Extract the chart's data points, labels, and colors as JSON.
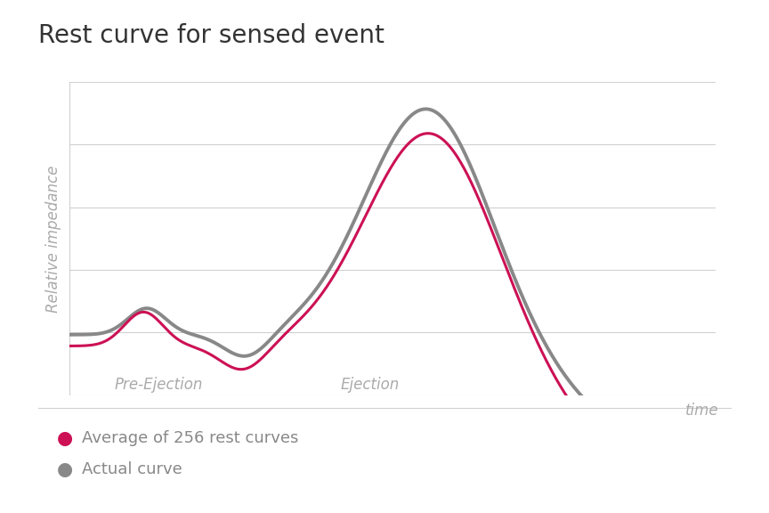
{
  "title": "Rest curve for sensed event",
  "title_fontsize": 20,
  "title_color": "#333333",
  "ylabel": "Relative impedance",
  "ylabel_fontsize": 12,
  "ylabel_color": "#aaaaaa",
  "xlabel": "time",
  "xlabel_fontsize": 12,
  "xlabel_color": "#aaaaaa",
  "background_color": "#ffffff",
  "plot_bg_color": "#ffffff",
  "grid_color": "#d0d0d0",
  "avg_color": "#cc1155",
  "actual_color": "#888888",
  "avg_linewidth": 2.2,
  "actual_linewidth": 2.8,
  "pre_ejection_label": "Pre-Ejection",
  "ejection_label": "Ejection",
  "label_fontsize": 12,
  "label_color": "#aaaaaa",
  "legend_avg": "Average of 256 rest curves",
  "legend_actual": "Actual curve",
  "legend_fontsize": 13,
  "legend_color": "#888888",
  "n_gridlines": 6
}
